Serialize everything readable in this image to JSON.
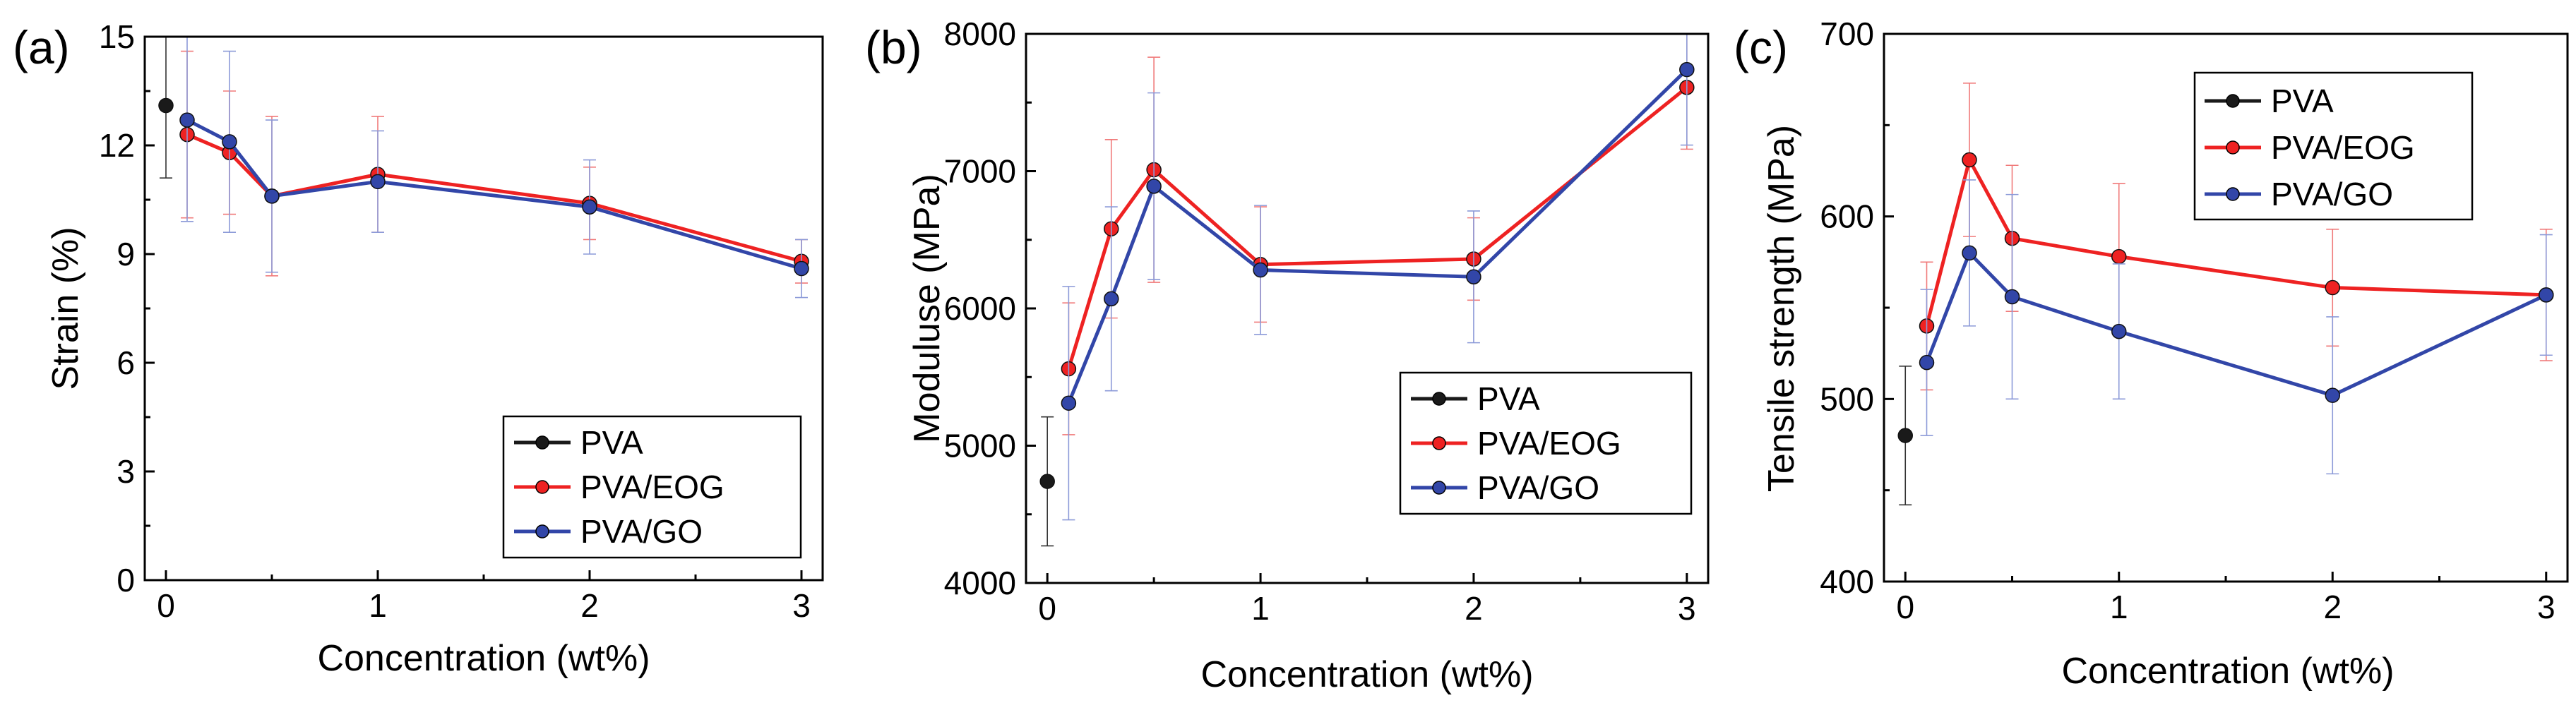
{
  "colors": {
    "PVA": "#1a1a1a",
    "PVA/EOG": "#ee2222",
    "PVA/GO": "#3246a8"
  },
  "chart_data": [
    {
      "type": "line",
      "panel": "(a)",
      "xlabel": "Concentration (wt%)",
      "ylabel": "Strain (%)",
      "xlim": [
        -0.1,
        3.1
      ],
      "ylim": [
        0,
        15
      ],
      "xticks": [
        0,
        1,
        2,
        3
      ],
      "yticks": [
        0,
        3,
        6,
        9,
        12,
        15
      ],
      "legend": [
        "PVA",
        "PVA/EOG",
        "PVA/GO"
      ],
      "legend_position": "bottom-right",
      "series": [
        {
          "name": "PVA",
          "x": [
            0
          ],
          "y": [
            13.1
          ],
          "err": [
            2.0
          ]
        },
        {
          "name": "PVA/EOG",
          "x": [
            0.1,
            0.3,
            0.5,
            1,
            2,
            3
          ],
          "y": [
            12.3,
            11.8,
            10.6,
            11.2,
            10.4,
            8.8
          ],
          "err": [
            2.3,
            1.7,
            2.2,
            1.6,
            1.0,
            0.6
          ]
        },
        {
          "name": "PVA/GO",
          "x": [
            0.1,
            0.3,
            0.5,
            1,
            2,
            3
          ],
          "y": [
            12.7,
            12.1,
            10.6,
            11.0,
            10.3,
            8.6
          ],
          "err": [
            2.8,
            2.5,
            2.1,
            1.4,
            1.3,
            0.8
          ]
        }
      ]
    },
    {
      "type": "line",
      "panel": "(b)",
      "xlabel": "Concentration (wt%)",
      "ylabel": "Moduluse (MPa)",
      "xlim": [
        -0.1,
        3.1
      ],
      "ylim": [
        4000,
        8000
      ],
      "xticks": [
        0,
        1,
        2,
        3
      ],
      "yticks": [
        4000,
        5000,
        6000,
        7000,
        8000
      ],
      "legend": [
        "PVA",
        "PVA/EOG",
        "PVA/GO"
      ],
      "legend_position": "bottom-right",
      "series": [
        {
          "name": "PVA",
          "x": [
            0
          ],
          "y": [
            4740
          ],
          "err": [
            470
          ]
        },
        {
          "name": "PVA/EOG",
          "x": [
            0.1,
            0.3,
            0.5,
            1,
            2,
            3
          ],
          "y": [
            5560,
            6580,
            7010,
            6320,
            6360,
            7610
          ],
          "err": [
            480,
            650,
            820,
            420,
            300,
            450
          ]
        },
        {
          "name": "PVA/GO",
          "x": [
            0.1,
            0.3,
            0.5,
            1,
            2,
            3
          ],
          "y": [
            5310,
            6070,
            6890,
            6280,
            6230,
            7740
          ],
          "err": [
            850,
            670,
            680,
            470,
            480,
            550
          ]
        }
      ]
    },
    {
      "type": "line",
      "panel": "(c)",
      "xlabel": "Concentration (wt%)",
      "ylabel": "Tensile strength (MPa)",
      "xlim": [
        -0.1,
        3.1
      ],
      "ylim": [
        400,
        700
      ],
      "xticks": [
        0,
        1,
        2,
        3
      ],
      "yticks": [
        400,
        500,
        600,
        700
      ],
      "legend": [
        "PVA",
        "PVA/EOG",
        "PVA/GO"
      ],
      "legend_position": "top-center",
      "series": [
        {
          "name": "PVA",
          "x": [
            0
          ],
          "y": [
            480
          ],
          "err": [
            38
          ]
        },
        {
          "name": "PVA/EOG",
          "x": [
            0.1,
            0.3,
            0.5,
            1,
            2,
            3
          ],
          "y": [
            540,
            631,
            588,
            578,
            561,
            557
          ],
          "err": [
            35,
            42,
            40,
            40,
            32,
            36
          ]
        },
        {
          "name": "PVA/GO",
          "x": [
            0.1,
            0.3,
            0.5,
            1,
            2,
            3
          ],
          "y": [
            520,
            580,
            556,
            537,
            502,
            557
          ],
          "err": [
            40,
            40,
            56,
            37,
            43,
            33
          ]
        }
      ]
    }
  ]
}
